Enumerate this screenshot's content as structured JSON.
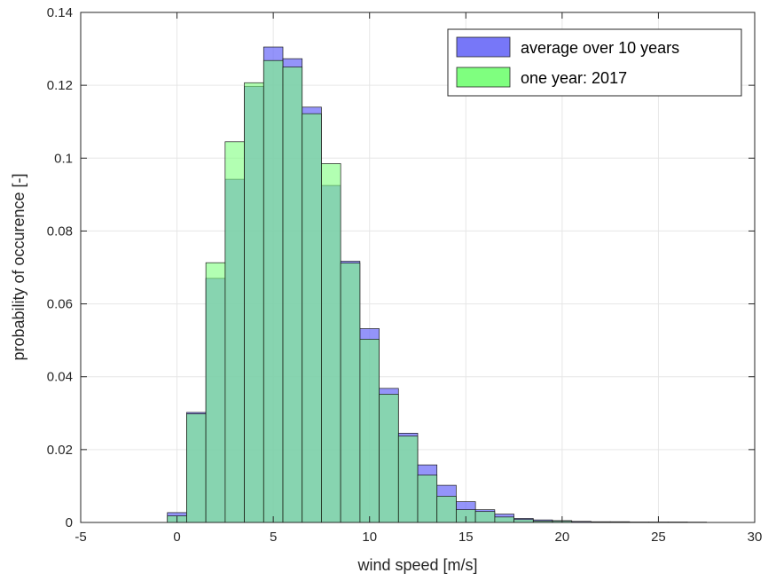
{
  "chart_data": {
    "type": "bar",
    "title": "",
    "xlabel": "wind speed [m/s]",
    "ylabel": "probability of occurence [-]",
    "xlim": [
      -5,
      30
    ],
    "ylim": [
      0,
      0.14
    ],
    "xticks": [
      -5,
      0,
      5,
      10,
      15,
      20,
      25,
      30
    ],
    "xtick_labels": [
      "-5",
      "0",
      "5",
      "10",
      "15",
      "20",
      "25",
      "30"
    ],
    "yticks": [
      0,
      0.02,
      0.04,
      0.06,
      0.08,
      0.1,
      0.12,
      0.14
    ],
    "ytick_labels": [
      "0",
      "0.02",
      "0.04",
      "0.06",
      "0.08",
      "0.1",
      "0.12",
      "0.14"
    ],
    "grid": true,
    "legend_position": "top-right",
    "bin_width": 1,
    "bin_centers": [
      0,
      1,
      2,
      3,
      4,
      5,
      6,
      7,
      8,
      9,
      10,
      11,
      12,
      13,
      14,
      15,
      16,
      17,
      18,
      19,
      20,
      21,
      22,
      23,
      24,
      25,
      26,
      27
    ],
    "series": [
      {
        "name": "average over 10 years",
        "color": "#7070f8",
        "values": [
          0.0027,
          0.0302,
          0.067,
          0.0942,
          0.1197,
          0.1305,
          0.1273,
          0.114,
          0.0925,
          0.0717,
          0.0532,
          0.0368,
          0.0245,
          0.0158,
          0.0102,
          0.0057,
          0.0035,
          0.0023,
          0.0011,
          0.0007,
          0.0005,
          0.0003,
          0.0002,
          0.0002,
          0.0001,
          0.0001,
          0.0001,
          0.0001
        ]
      },
      {
        "name": "one year: 2017",
        "color": "#7fff7f",
        "values": [
          0.0018,
          0.0298,
          0.0713,
          0.1045,
          0.1207,
          0.1268,
          0.125,
          0.1122,
          0.0985,
          0.0712,
          0.0503,
          0.0352,
          0.0237,
          0.013,
          0.0072,
          0.0035,
          0.003,
          0.0015,
          0.0008,
          0.0004,
          0.0004,
          0.0001,
          0.0001,
          0.0001,
          0.0001,
          0.0001,
          0.0001,
          0.0
        ]
      }
    ]
  }
}
